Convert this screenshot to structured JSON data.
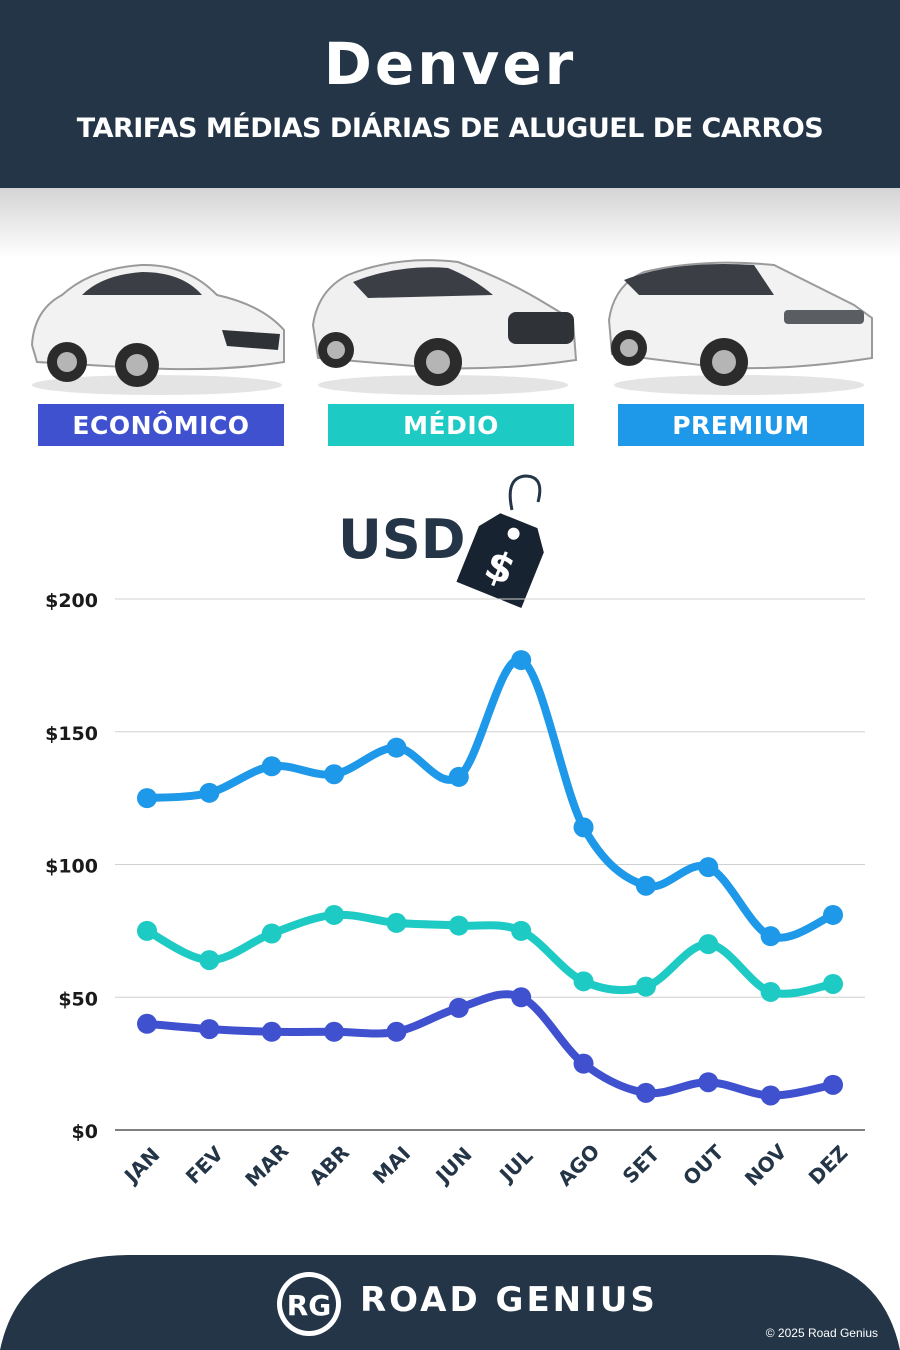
{
  "header": {
    "title": "Denver",
    "subtitle": "TARIFAS MÉDIAS DIÁRIAS DE ALUGUEL DE CARROS"
  },
  "categories": [
    {
      "label": "ECONÔMICO",
      "color": "#3f51cf"
    },
    {
      "label": "MÉDIO",
      "color": "#1ecac4"
    },
    {
      "label": "PREMIUM",
      "color": "#1e98e8"
    }
  ],
  "currency_label": "USD",
  "currency_symbol": "$",
  "colors": {
    "header": "#233547",
    "grid": "#d0d0d0",
    "text": "#233547"
  },
  "chart_data": {
    "type": "line",
    "categories": [
      "JAN",
      "FEV",
      "MAR",
      "ABR",
      "MAI",
      "JUN",
      "JUL",
      "AGO",
      "SET",
      "OUT",
      "NOV",
      "DEZ"
    ],
    "series": [
      {
        "name": "PREMIUM",
        "color": "#1e98e8",
        "values": [
          125,
          127,
          137,
          134,
          144,
          133,
          177,
          114,
          92,
          99,
          73,
          81
        ]
      },
      {
        "name": "MÉDIO",
        "color": "#1ecac4",
        "values": [
          75,
          64,
          74,
          81,
          78,
          77,
          75,
          56,
          54,
          70,
          52,
          55
        ]
      },
      {
        "name": "ECONÔMICO",
        "color": "#3f51cf",
        "values": [
          40,
          38,
          37,
          37,
          37,
          46,
          50,
          25,
          14,
          18,
          13,
          17
        ]
      }
    ],
    "ylim": [
      0,
      200
    ],
    "yticks": [
      0,
      50,
      100,
      150,
      200
    ],
    "ytick_labels": [
      "$0",
      "$50",
      "$100",
      "$150",
      "$200"
    ],
    "grid": true
  },
  "footer": {
    "brand": "ROAD GENIUS",
    "logo_text": "RG",
    "copyright": "© 2025 Road Genius"
  }
}
